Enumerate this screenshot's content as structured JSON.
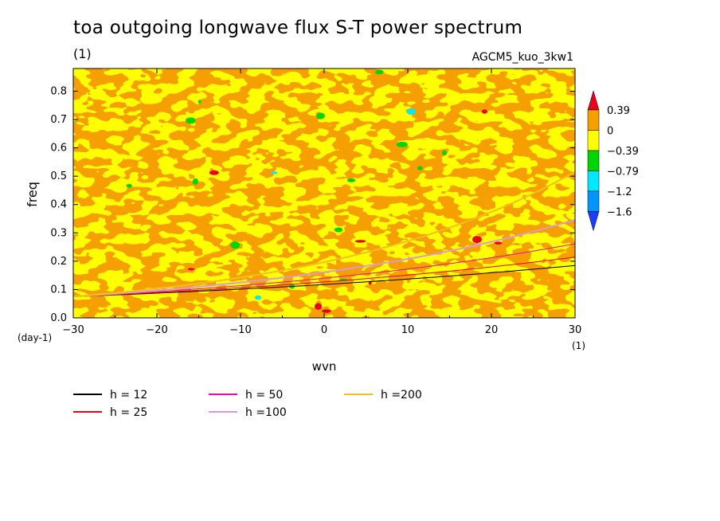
{
  "figure": {
    "title": "toa outgoing longwave flux S-T power spectrum",
    "subtitle": "(1)",
    "run_label": "AGCM5_kuo_3kw1"
  },
  "chart_data": {
    "type": "heatmap",
    "xlabel": "wvn",
    "ylabel": "freq",
    "x_unit": "(1)",
    "y_unit": "(day-1)",
    "xlim": [
      -30,
      30
    ],
    "ylim": [
      0,
      0.88
    ],
    "x_ticks": [
      -30,
      -20,
      -10,
      0,
      10,
      20,
      30
    ],
    "y_ticks": [
      0.0,
      0.1,
      0.2,
      0.3,
      0.4,
      0.5,
      0.6,
      0.7,
      0.8
    ],
    "colorbar": {
      "levels": [
        "0.39",
        "0",
        "-0.39",
        "-0.79",
        "-1.2",
        "-1.6"
      ],
      "colors": [
        "#e8001c",
        "#f5a000",
        "#ffff00",
        "#00d500",
        "#00e8ff",
        "#0096ff",
        "#1e3cff"
      ],
      "field_mix": {
        "orange": 0.45,
        "yellow": 0.53,
        "rare_colors": 0.02
      }
    },
    "dispersion_curves": [
      {
        "name": "h = 12",
        "h": 12,
        "color": "#000000"
      },
      {
        "name": "h = 25",
        "h": 25,
        "color": "#e8001c"
      },
      {
        "name": "h = 50",
        "h": 50,
        "color": "#e0149c"
      },
      {
        "name": "h =100",
        "h": 100,
        "color": "#d89ad8"
      },
      {
        "name": "h =200",
        "h": 200,
        "color": "#f0c020"
      }
    ],
    "curve_type": "Kelvin wave dispersion",
    "grid": false
  }
}
